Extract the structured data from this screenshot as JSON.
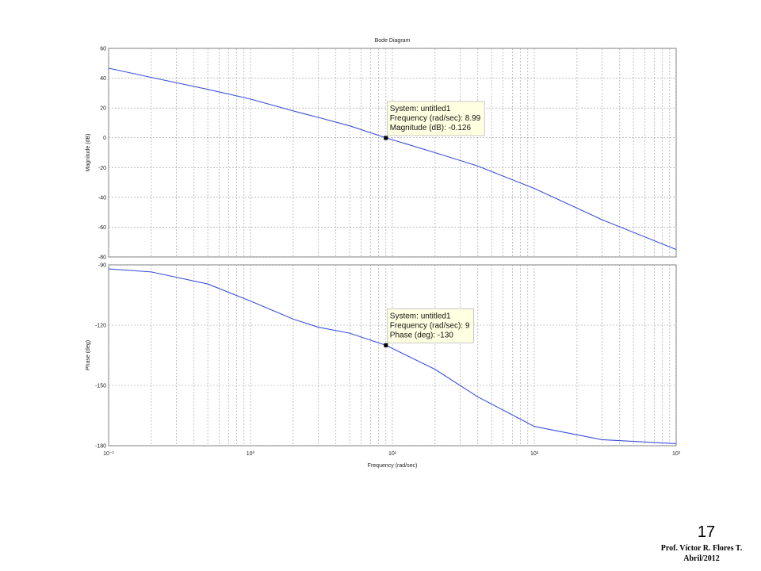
{
  "footer": {
    "page": "17",
    "author": "Prof. Víctor R. Flores T.",
    "date": "Abril/2012"
  },
  "chart_data": [
    {
      "type": "line",
      "title": "Bode Diagram",
      "ylabel": "Magnitude (dB)",
      "xscale": "log",
      "grid": true,
      "x": [
        0.1,
        0.2,
        0.5,
        1,
        2,
        3,
        5,
        9,
        20,
        40,
        100,
        300,
        1000
      ],
      "series": [
        {
          "name": "untitled1",
          "color": "#3c50d8",
          "values": [
            46.7,
            40.5,
            32.5,
            26,
            18,
            13.7,
            8,
            0,
            -10,
            -19,
            -34,
            -55,
            -75
          ]
        }
      ],
      "xlim": [
        0.1,
        1000
      ],
      "ylim": [
        -80,
        60
      ],
      "xticks": [
        0.1,
        1,
        10,
        100,
        1000
      ],
      "xminorticks": [
        0.2,
        0.3,
        0.4,
        0.5,
        0.6,
        0.7,
        0.8,
        0.9,
        2,
        3,
        4,
        5,
        6,
        7,
        8,
        9,
        20,
        30,
        40,
        50,
        60,
        70,
        80,
        90,
        200,
        300,
        400,
        500,
        600,
        700,
        800,
        900
      ],
      "yticks": [
        60,
        40,
        20,
        0,
        -20,
        -40,
        -60,
        -80
      ],
      "datatip": {
        "x": 8.99,
        "y": -0.126,
        "lines": [
          "System: untitled1",
          "Frequency (rad/sec): 8.99",
          "Magnitude (dB): -0.126"
        ]
      }
    },
    {
      "type": "line",
      "ylabel": "Phase (deg)",
      "xlabel": "Frequency  (rad/sec)",
      "xscale": "log",
      "grid": true,
      "x": [
        0.1,
        0.2,
        0.5,
        1,
        2,
        3,
        5,
        9,
        20,
        40,
        100,
        300,
        1000
      ],
      "series": [
        {
          "name": "untitled1",
          "color": "#3c50d8",
          "values": [
            -92,
            -93.5,
            -99.5,
            -108,
            -117,
            -121,
            -124,
            -130,
            -142,
            -155.7,
            -170.4,
            -177,
            -179
          ]
        }
      ],
      "xlim": [
        0.1,
        1000
      ],
      "ylim": [
        -180,
        -90
      ],
      "xticks": [
        {
          "value": 0.1,
          "label": "10⁻¹"
        },
        {
          "value": 1,
          "label": "10⁰"
        },
        {
          "value": 10,
          "label": "10¹"
        },
        {
          "value": 100,
          "label": "10²"
        },
        {
          "value": 1000,
          "label": "10³"
        }
      ],
      "xminorticks": [
        0.2,
        0.3,
        0.4,
        0.5,
        0.6,
        0.7,
        0.8,
        0.9,
        2,
        3,
        4,
        5,
        6,
        7,
        8,
        9,
        20,
        30,
        40,
        50,
        60,
        70,
        80,
        90,
        200,
        300,
        400,
        500,
        600,
        700,
        800,
        900
      ],
      "yticks": [
        -90,
        -120,
        -150,
        -180
      ],
      "datatip": {
        "x": 9,
        "y": -130,
        "lines": [
          "System: untitled1",
          "Frequency (rad/sec): 9",
          "Phase (deg): -130"
        ]
      }
    }
  ]
}
